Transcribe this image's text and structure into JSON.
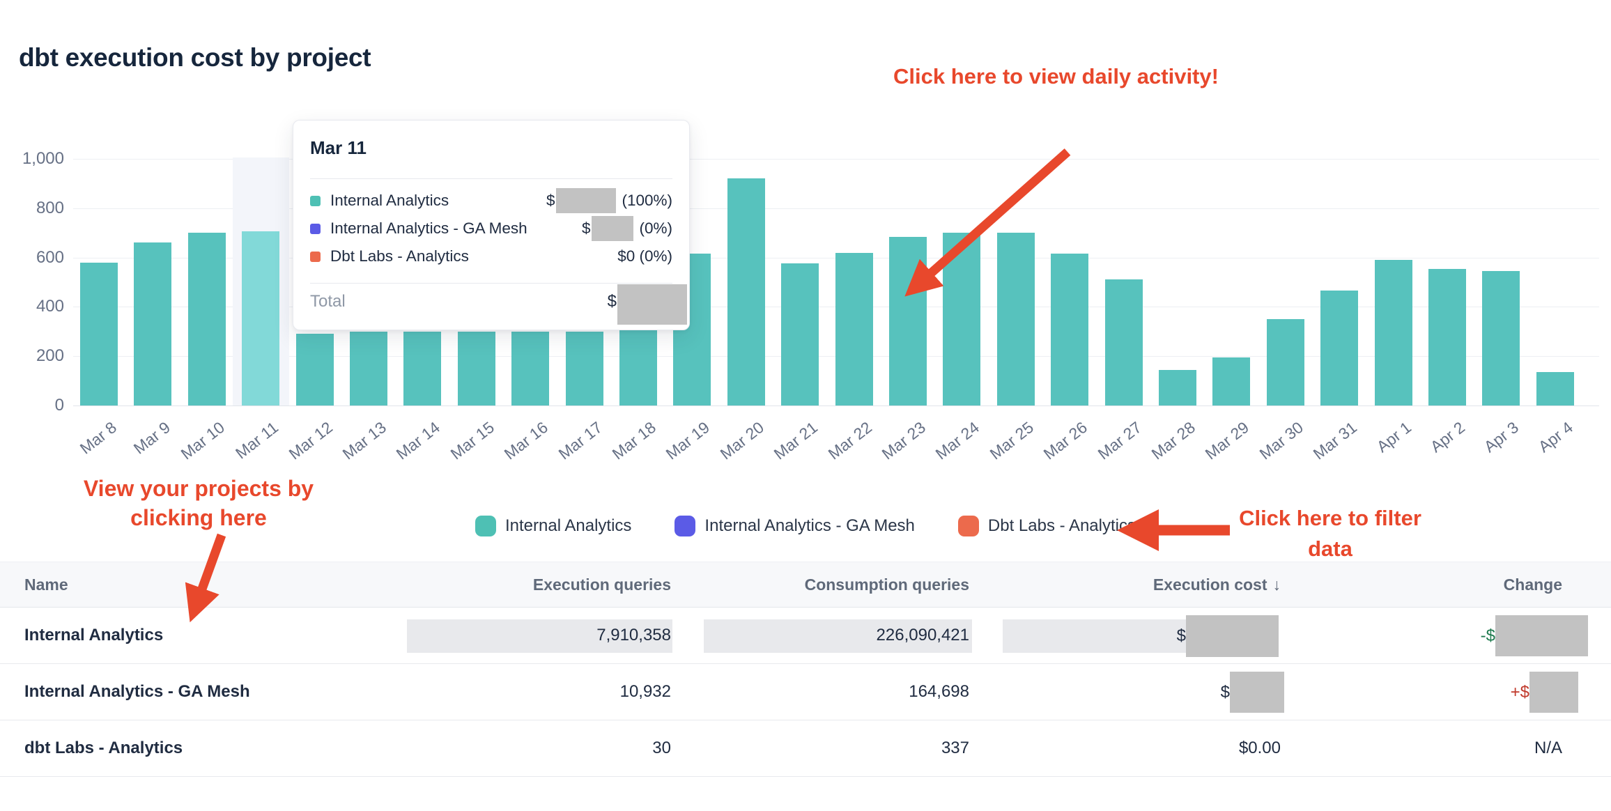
{
  "page": {
    "title": "dbt execution cost by project"
  },
  "colors": {
    "bar": "#57c2bd",
    "bar_highlight": "#82d9d8",
    "highlight_band": "#f3f5fa",
    "series_teal": "#4ec0b4",
    "series_purple": "#5b5be6",
    "series_orange": "#ec6a4c",
    "annotation": "#e8482c",
    "redaction": "#c2c2c2",
    "cell_highlight": "#e8e9ec",
    "change_negative": "#1e7a4e",
    "change_positive": "#c0392b",
    "title_text": "#16263c",
    "body_text": "#202c41",
    "axis_text": "#667085",
    "gridline": "#edeff3",
    "header_bg": "#f7f8fa"
  },
  "chart_data": {
    "type": "bar",
    "title": "dbt execution cost by project",
    "xlabel": "",
    "ylabel": "",
    "ylim": [
      0,
      1000
    ],
    "grid": true,
    "legend_position": "bottom",
    "categories": [
      "Mar 8",
      "Mar 9",
      "Mar 10",
      "Mar 11",
      "Mar 12",
      "Mar 13",
      "Mar 14",
      "Mar 15",
      "Mar 16",
      "Mar 17",
      "Mar 18",
      "Mar 19",
      "Mar 20",
      "Mar 21",
      "Mar 22",
      "Mar 23",
      "Mar 24",
      "Mar 25",
      "Mar 26",
      "Mar 27",
      "Mar 28",
      "Mar 29",
      "Mar 30",
      "Mar 31",
      "Apr 1",
      "Apr 2",
      "Apr 3",
      "Apr 4"
    ],
    "series": [
      {
        "name": "Internal Analytics",
        "values": [
          580,
          660,
          700,
          705,
          290,
          300,
          300,
          300,
          300,
          300,
          320,
          615,
          920,
          575,
          620,
          685,
          700,
          700,
          615,
          510,
          145,
          195,
          350,
          465,
          590,
          555,
          545,
          135
        ]
      },
      {
        "name": "Internal Analytics - GA Mesh",
        "values": [
          0,
          0,
          0,
          0,
          0,
          0,
          0,
          0,
          0,
          0,
          0,
          0,
          0,
          0,
          0,
          0,
          0,
          0,
          0,
          0,
          0,
          0,
          0,
          0,
          0,
          0,
          0,
          0
        ]
      },
      {
        "name": "Dbt Labs - Analytics",
        "values": [
          0,
          0,
          0,
          0,
          0,
          0,
          0,
          0,
          0,
          0,
          0,
          0,
          0,
          0,
          0,
          0,
          0,
          0,
          0,
          0,
          0,
          0,
          0,
          0,
          0,
          0,
          0,
          0
        ]
      }
    ],
    "highlighted_category": "Mar 11",
    "yticks": [
      {
        "value": 0,
        "label": "0"
      },
      {
        "value": 200,
        "label": "200"
      },
      {
        "value": 400,
        "label": "400"
      },
      {
        "value": 600,
        "label": "600"
      },
      {
        "value": 800,
        "label": "800"
      },
      {
        "value": 1000,
        "label": "1,000"
      }
    ]
  },
  "tooltip": {
    "title": "Mar 11",
    "rows": [
      {
        "label": "Internal Analytics",
        "value_prefix": "$",
        "value_redacted": true,
        "percent": "(100%)"
      },
      {
        "label": "Internal Analytics - GA Mesh",
        "value_prefix": "$",
        "value_redacted": true,
        "percent": "(0%)"
      },
      {
        "label": "Dbt Labs - Analytics",
        "value": "$0 (0%)",
        "value_redacted": false
      }
    ],
    "total_label": "Total",
    "total_prefix": "$",
    "total_redacted": true
  },
  "legend": {
    "items": [
      {
        "label": "Internal Analytics"
      },
      {
        "label": "Internal Analytics - GA Mesh"
      },
      {
        "label": "Dbt Labs - Analytics"
      }
    ]
  },
  "table": {
    "headers": {
      "name": "Name",
      "execution_queries": "Execution queries",
      "consumption_queries": "Consumption queries",
      "execution_cost": "Execution cost",
      "change": "Change",
      "sort_icon": "↓",
      "sorted_by": "Execution cost"
    },
    "rows": [
      {
        "name": "Internal Analytics",
        "execution_queries": "7,910,358",
        "consumption_queries": "226,090,421",
        "execution_cost_prefix": "$",
        "execution_cost_redacted": true,
        "change_prefix": "-$",
        "change_redacted": true,
        "change_direction": "negative",
        "highlighted": true
      },
      {
        "name": "Internal Analytics - GA Mesh",
        "execution_queries": "10,932",
        "consumption_queries": "164,698",
        "execution_cost_prefix": "$",
        "execution_cost_redacted": true,
        "change_prefix": "+$",
        "change_redacted": true,
        "change_direction": "positive",
        "highlighted": false
      },
      {
        "name": "dbt Labs - Analytics",
        "execution_queries": "30",
        "consumption_queries": "337",
        "execution_cost": "$0.00",
        "change": "N/A",
        "highlighted": false
      }
    ]
  },
  "annotations": {
    "daily_activity": "Click here to view daily activity!",
    "projects_line1": "View your projects by",
    "projects_line2": "clicking here",
    "filter_line1": "Click here to filter",
    "filter_line2": "data",
    "color": "#e8482c"
  }
}
